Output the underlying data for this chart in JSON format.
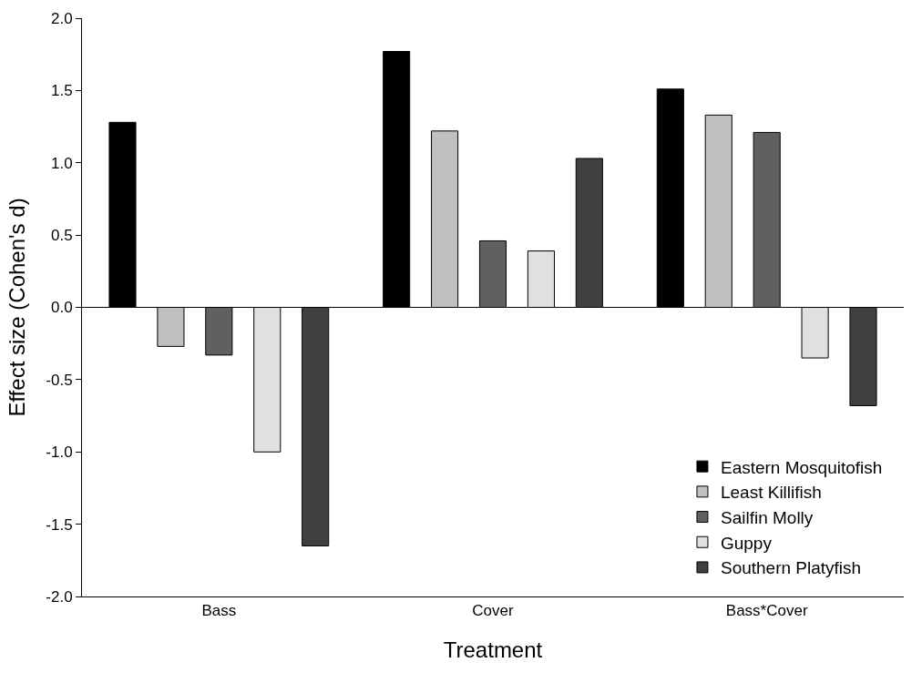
{
  "chart_data": {
    "type": "bar",
    "xlabel": "Treatment",
    "ylabel": "Effect size (Cohen's d)",
    "categories": [
      "Bass",
      "Cover",
      "Bass*Cover"
    ],
    "series": [
      {
        "name": "Eastern Mosquitofish",
        "color": "#000000",
        "values": [
          1.28,
          1.77,
          1.51
        ]
      },
      {
        "name": "Least Killifish",
        "color": "#c0c0c0",
        "values": [
          -0.27,
          1.22,
          1.33
        ]
      },
      {
        "name": "Sailfin Molly",
        "color": "#606060",
        "values": [
          -0.33,
          0.46,
          1.21
        ]
      },
      {
        "name": "Guppy",
        "color": "#e0e0e0",
        "values": [
          -1.0,
          0.39,
          -0.35
        ]
      },
      {
        "name": "Southern Platyfish",
        "color": "#404040",
        "values": [
          -1.65,
          1.03,
          -0.68
        ]
      }
    ],
    "ylim": [
      -2.0,
      2.0
    ],
    "yticks": [
      {
        "value": -2,
        "label": "-2.0"
      },
      {
        "value": -1.5,
        "label": "-1.5"
      },
      {
        "value": -1,
        "label": "-1.0"
      },
      {
        "value": -0.5,
        "label": "-0.5"
      },
      {
        "value": 0,
        "label": "0.0"
      },
      {
        "value": 0.5,
        "label": "0.5"
      },
      {
        "value": 1,
        "label": "1.0"
      },
      {
        "value": 1.5,
        "label": "1.5"
      },
      {
        "value": 2,
        "label": "2.0"
      }
    ],
    "legend": "bottom right"
  }
}
